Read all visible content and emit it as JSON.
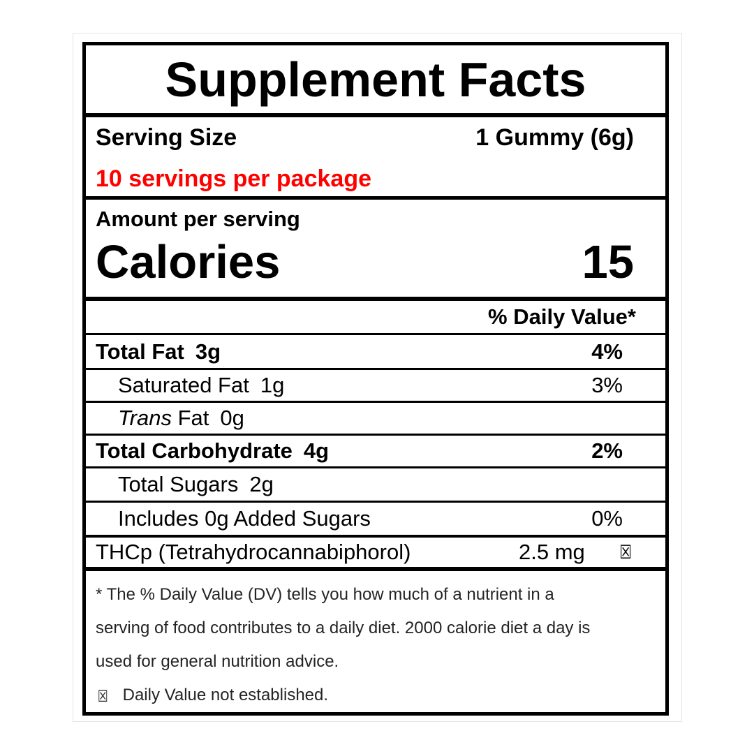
{
  "label": {
    "title": "Supplement Facts",
    "serving": {
      "size_label": "Serving Size",
      "size_value": "1 Gummy (6g)",
      "servings_per_package": "10 servings per package"
    },
    "amount_per_serving": "Amount per serving",
    "calories": {
      "label": "Calories",
      "value": "15"
    },
    "daily_value_header": "% Daily Value*",
    "nutrients": [
      {
        "name": "Total Fat",
        "amount": "3g",
        "dv": "4%"
      },
      {
        "name": "Saturated Fat",
        "amount": "1g",
        "dv": "3%"
      },
      {
        "name_italic": "Trans",
        "name": " Fat",
        "amount": "0g",
        "dv": ""
      },
      {
        "name": "Total Carbohydrate",
        "amount": "4g",
        "dv": "2%"
      },
      {
        "name": "Total Sugars",
        "amount": "2g",
        "dv": ""
      },
      {
        "name": "Includes 0g Added Sugars",
        "amount": "",
        "dv": "0%"
      }
    ],
    "active_ingredient": {
      "name": "THCp (Tetrahydrocannabiphorol)",
      "amount": "2.5 mg",
      "symbol": "☒"
    },
    "footnote_lines": [
      "* The % Daily Value (DV) tells you how much of a nutrient in a",
      "serving of food contributes to a daily diet. 2000 calorie diet a day is",
      "used for general nutrition advice."
    ],
    "dv_note": {
      "symbol": "☒",
      "text": "Daily Value not established."
    },
    "colors": {
      "accent_red": "#ff0000",
      "ink": "#000000"
    }
  }
}
